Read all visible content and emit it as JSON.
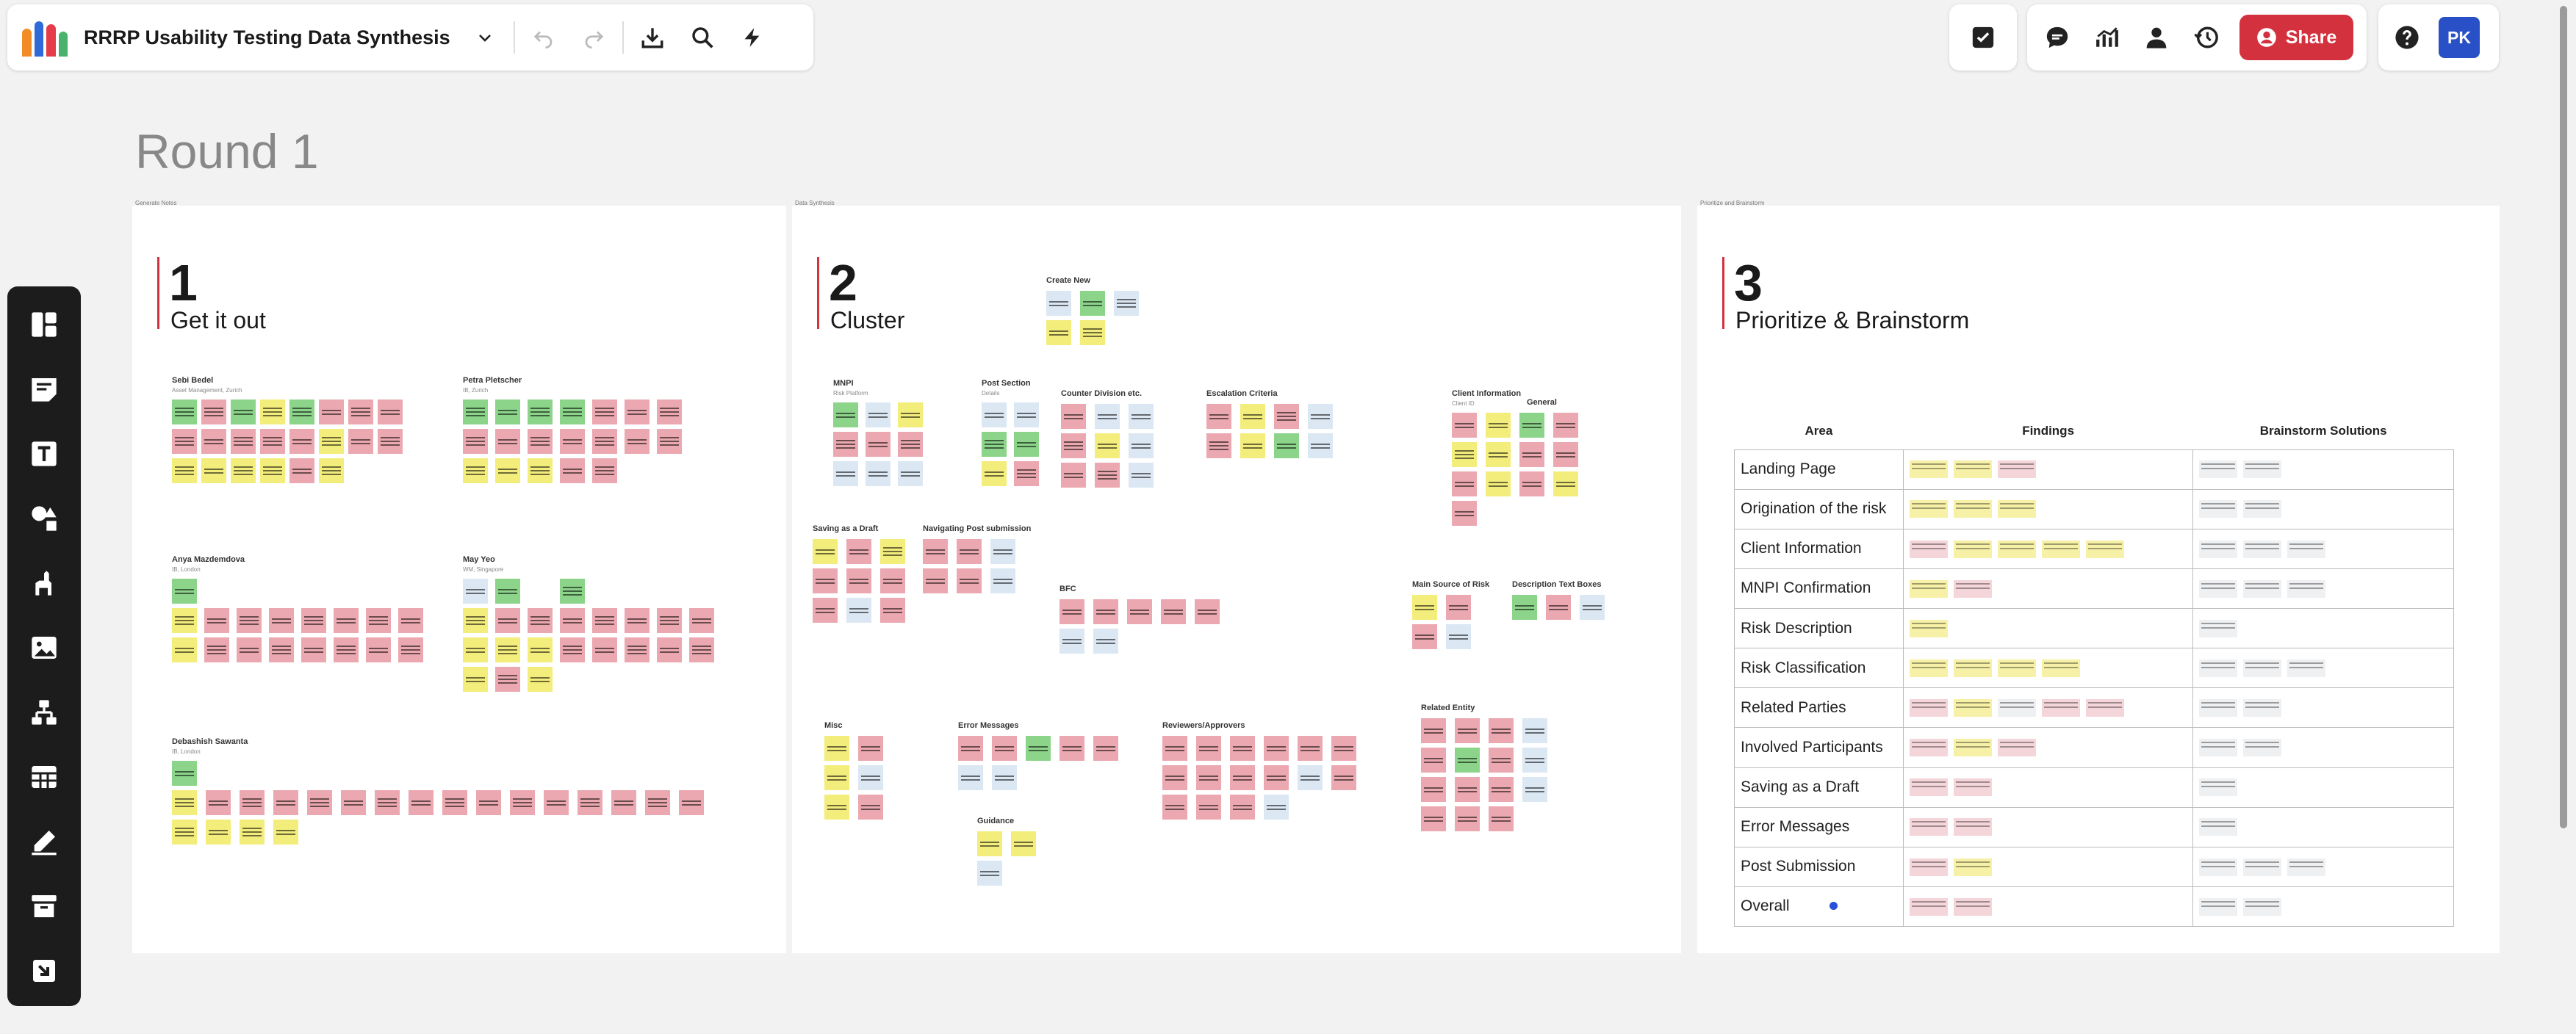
{
  "board": {
    "title": "RRRP Usability Testing Data Synthesis",
    "round_title": "Round 1",
    "logo_colors": [
      "#f28c28",
      "#2f6bd8",
      "#e63b48",
      "#49b36b"
    ]
  },
  "toolbar": {
    "share_label": "Share",
    "avatar_initials": "PK",
    "accent": "#d3313e"
  },
  "frames": [
    {
      "label": "Generate Notes",
      "number": "1",
      "name": "Get it out"
    },
    {
      "label": "Data Synthesis",
      "number": "2",
      "name": "Cluster"
    },
    {
      "label": "Prioritize and Brainstorm",
      "number": "3",
      "name": "Prioritize & Brainstorm"
    }
  ],
  "section1_groups": [
    {
      "title": "Sebi Bedel",
      "sub": "Asset Management, Zurich"
    },
    {
      "title": "Petra Pletscher",
      "sub": "IB, Zurich"
    },
    {
      "title": "Anya Mazdemdova",
      "sub": "IB, London"
    },
    {
      "title": "May Yeo",
      "sub": "WM, Singapore"
    },
    {
      "title": "Debashish Sawanta",
      "sub": "IB, London"
    }
  ],
  "section2_groups": [
    {
      "title": "Create New"
    },
    {
      "title": "MNPI",
      "sub": "Risk Platform"
    },
    {
      "title": "Post Section",
      "sub": "Details"
    },
    {
      "title": "Counter Division etc."
    },
    {
      "title": "Escalation Criteria"
    },
    {
      "title": "Client Information",
      "sub": "Client ID"
    },
    {
      "title": "General"
    },
    {
      "title": "Saving as a Draft"
    },
    {
      "title": "Navigating Post submission"
    },
    {
      "title": "BFC"
    },
    {
      "title": "Main Source of Risk"
    },
    {
      "title": "Description Text Boxes"
    },
    {
      "title": "Misc"
    },
    {
      "title": "Error Messages"
    },
    {
      "title": "Reviewers/Approvers"
    },
    {
      "title": "Related Entity"
    },
    {
      "title": "Guidance"
    }
  ],
  "table": {
    "headers": {
      "area": "Area",
      "findings": "Findings",
      "solutions": "Brainstorm Solutions"
    },
    "rows": [
      {
        "area": "Landing Page"
      },
      {
        "area": "Origination of the risk"
      },
      {
        "area": "Client Information"
      },
      {
        "area": "MNPI Confirmation"
      },
      {
        "area": "Risk Description"
      },
      {
        "area": "Risk Classification"
      },
      {
        "area": "Related Parties"
      },
      {
        "area": "Involved Participants"
      },
      {
        "area": "Saving as a Draft"
      },
      {
        "area": "Error Messages"
      },
      {
        "area": "Post Submission"
      },
      {
        "area": "Overall"
      }
    ]
  }
}
